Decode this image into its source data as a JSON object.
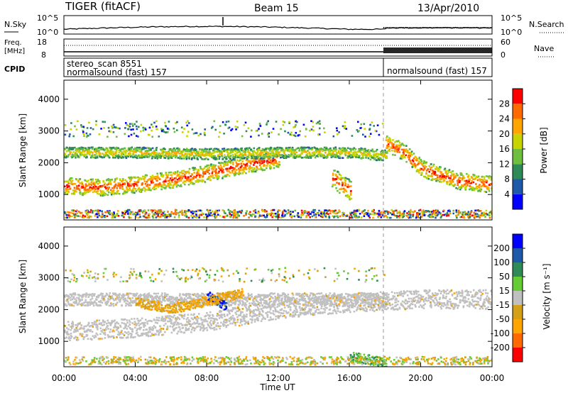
{
  "header": {
    "title": "TIGER (fitACF)",
    "beam": "Beam 15",
    "date": "13/Apr/2010"
  },
  "top_panel": {
    "left_label": "N.Sky",
    "left_ticks": [
      "10^5",
      "10^0"
    ],
    "right_ticks": [
      "10^5",
      "10^0"
    ],
    "right_label": "N.Search"
  },
  "freq_panel": {
    "left_label_1": "Freq.",
    "left_label_2": "[MHz]",
    "left_ticks": [
      "18",
      "8"
    ],
    "right_ticks": [
      "60",
      "0"
    ],
    "right_label": "Nave"
  },
  "cpid_panel": {
    "label": "CPID",
    "mode_1_line_1": "stereo_scan 8551",
    "mode_1_line_2": "normalsound (fast) 157",
    "mode_2": "normalsound (fast) 157"
  },
  "power_panel": {
    "ylabel": "Slant Range [km]",
    "yticks": [
      "1000",
      "2000",
      "3000",
      "4000"
    ],
    "colorbar_label": "Power [dB]",
    "colorbar_ticks": [
      "4",
      "8",
      "12",
      "16",
      "20",
      "24",
      "28"
    ],
    "colorbar_colors": [
      "#0000ff",
      "#1e5aa8",
      "#2e8b57",
      "#6fbf3f",
      "#c8d400",
      "#ffa500",
      "#ff6a00",
      "#ff0000"
    ]
  },
  "velocity_panel": {
    "ylabel": "Slant Range [km]",
    "yticks": [
      "1000",
      "2000",
      "3000",
      "4000"
    ],
    "colorbar_label": "Velocity [m s⁻¹]",
    "colorbar_ticks": [
      "-200",
      "-100",
      "-50",
      "-15",
      "15",
      "50",
      "100",
      "200"
    ],
    "colorbar_colors": [
      "#ff0000",
      "#ff6a00",
      "#ffa500",
      "#d4a017",
      "#c0c0c0",
      "#66cc33",
      "#2e8b57",
      "#1e5aa8",
      "#0000ff"
    ]
  },
  "xaxis": {
    "label": "Time UT",
    "ticks": [
      "00:00",
      "04:00",
      "08:00",
      "12:00",
      "16:00",
      "20:00",
      "00:00"
    ]
  },
  "chart_data": [
    {
      "type": "heatmap",
      "title": "TIGER (fitACF) Beam 15 13/Apr/2010",
      "xlabel": "Time UT",
      "ylabel": "Slant Range [km]",
      "xlim": [
        0,
        24
      ],
      "ylim": [
        200,
        4600
      ],
      "zlabel": "Power [dB]",
      "zlim": [
        0,
        32
      ],
      "regions": [
        {
          "name": "main band",
          "x": [
            0,
            2,
            4,
            6,
            8,
            10,
            12
          ],
          "y": [
            1250,
            1200,
            1300,
            1450,
            1650,
            1900,
            2100
          ],
          "z": 28
        },
        {
          "name": "upper band",
          "x": [
            0,
            4,
            8,
            12,
            16,
            18
          ],
          "y": [
            2300,
            2300,
            2250,
            2300,
            2300,
            2200
          ],
          "z": 20
        },
        {
          "name": "evening band",
          "x": [
            18,
            19,
            20,
            22,
            24
          ],
          "y": [
            2600,
            2300,
            1800,
            1400,
            1300
          ],
          "z": 28
        },
        {
          "name": "blob",
          "x": [
            15,
            16
          ],
          "y": [
            1500,
            1100
          ],
          "z": 28
        }
      ]
    },
    {
      "type": "heatmap",
      "title": "TIGER (fitACF) Beam 15 13/Apr/2010",
      "xlabel": "Time UT",
      "ylabel": "Slant Range [km]",
      "xlim": [
        0,
        24
      ],
      "ylim": [
        200,
        4600
      ],
      "zlabel": "Velocity [m s-1]",
      "zlim": [
        -250,
        250
      ],
      "regions": [
        {
          "name": "main band",
          "x": [
            0,
            4,
            8,
            12,
            16,
            20,
            24
          ],
          "y": [
            1300,
            1400,
            1600,
            2000,
            2200,
            2300,
            2300
          ],
          "z": 0
        },
        {
          "name": "upper band",
          "x": [
            0,
            4,
            8,
            12,
            18
          ],
          "y": [
            2300,
            2300,
            2300,
            2300,
            2300
          ],
          "z": 0
        },
        {
          "name": "blue patch",
          "x": [
            8,
            9
          ],
          "y": [
            2400,
            2100
          ],
          "z": 200
        },
        {
          "name": "orange patch",
          "x": [
            4,
            6,
            10
          ],
          "y": [
            2200,
            2000,
            2500
          ],
          "z": -50
        },
        {
          "name": "green streak",
          "x": [
            16,
            18
          ],
          "y": [
            500,
            300
          ],
          "z": 50
        }
      ]
    }
  ]
}
